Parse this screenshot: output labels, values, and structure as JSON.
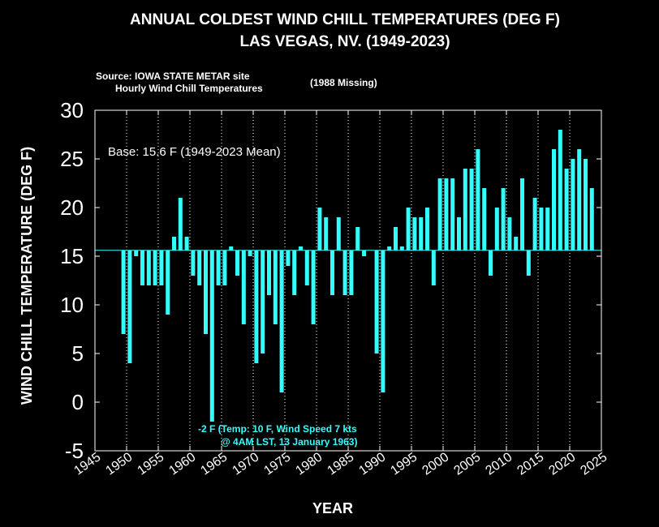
{
  "chart_data": {
    "type": "bar",
    "title": [
      "ANNUAL COLDEST WIND CHILL TEMPERATURES (DEG F)",
      "LAS VEGAS, NV. (1949-2023)"
    ],
    "source_lines": [
      "Source: IOWA STATE METAR site",
      "Hourly Wind Chill Temperatures"
    ],
    "missing_note": "(1988 Missing)",
    "base_label": "Base: 15.6 F (1949-2023 Mean)",
    "base": 15.6,
    "xlabel": "YEAR",
    "ylabel": "WIND CHILL TEMPERATURE (DEG F)",
    "xlim": [
      1945,
      2025
    ],
    "ylim": [
      -5,
      30
    ],
    "x_ticks": [
      "1945",
      "1950",
      "1955",
      "1960",
      "1965",
      "1970",
      "1975",
      "1980",
      "1985",
      "1990",
      "1995",
      "2000",
      "2005",
      "2010",
      "2015",
      "2020",
      "2025"
    ],
    "y_ticks": [
      "-5",
      "0",
      "5",
      "10",
      "15",
      "20",
      "25",
      "30"
    ],
    "grid": "dotted vertical at x ticks",
    "bar_color": "#33ffff",
    "annotation": [
      "-2 F (Temp: 10 F,  Wind Speed 7 kts",
      "@  4AM LST, 13 January 1963)"
    ],
    "x": [
      1949,
      1950,
      1951,
      1952,
      1953,
      1954,
      1955,
      1956,
      1957,
      1958,
      1959,
      1960,
      1961,
      1962,
      1963,
      1964,
      1965,
      1966,
      1967,
      1968,
      1969,
      1970,
      1971,
      1972,
      1973,
      1974,
      1975,
      1976,
      1977,
      1978,
      1979,
      1980,
      1981,
      1982,
      1983,
      1984,
      1985,
      1986,
      1987,
      1989,
      1990,
      1991,
      1992,
      1993,
      1994,
      1995,
      1996,
      1997,
      1998,
      1999,
      2000,
      2001,
      2002,
      2003,
      2004,
      2005,
      2006,
      2007,
      2008,
      2009,
      2010,
      2011,
      2012,
      2013,
      2014,
      2015,
      2016,
      2017,
      2018,
      2019,
      2020,
      2021,
      2022,
      2023
    ],
    "values": [
      7,
      4,
      15,
      12,
      12,
      12,
      12,
      9,
      17,
      21,
      17,
      13,
      12,
      7,
      -2,
      12,
      12,
      16,
      13,
      8,
      15,
      4,
      5,
      11,
      8,
      1,
      14,
      11,
      16,
      12,
      8,
      20,
      19,
      11,
      19,
      11,
      11,
      18,
      15,
      5,
      1,
      16,
      18,
      16,
      20,
      19,
      19,
      20,
      12,
      23,
      23,
      23,
      19,
      24,
      24,
      26,
      22,
      13,
      20,
      22,
      19,
      17,
      23,
      13,
      21,
      20,
      20,
      26,
      28,
      24,
      25,
      26,
      25,
      22
    ]
  }
}
